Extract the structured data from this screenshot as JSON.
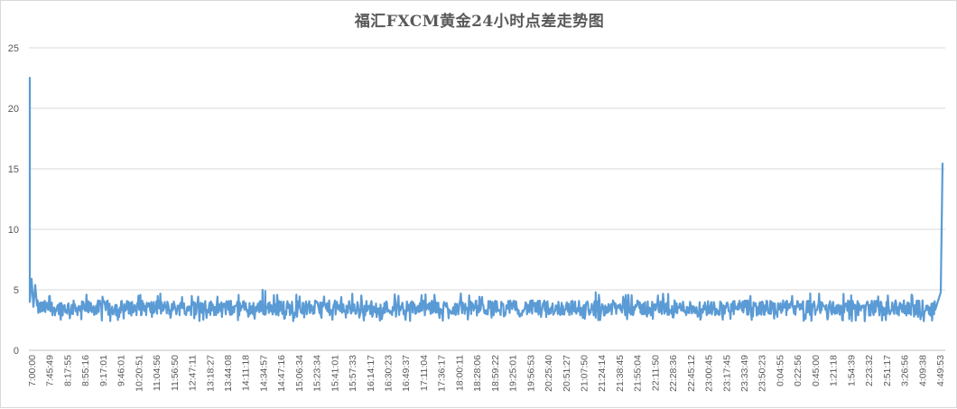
{
  "chart_data": {
    "type": "line",
    "title": "福汇FXCM黄金24小时点差走势图",
    "xlabel": "",
    "ylabel": "",
    "ylim": [
      0,
      25
    ],
    "yticks": [
      0,
      5,
      10,
      15,
      20,
      25
    ],
    "grid": "horizontal",
    "legend": "none",
    "series_color": "#5B9BD5",
    "x_tick_labels": [
      "7:00:00",
      "7:45:49",
      "8:17:55",
      "8:55:16",
      "9:17:01",
      "9:46:01",
      "10:20:51",
      "11:04:56",
      "11:56:50",
      "12:47:11",
      "13:18:27",
      "13:44:08",
      "14:11:18",
      "14:34:57",
      "14:47:16",
      "15:06:34",
      "15:23:34",
      "15:41:01",
      "15:57:33",
      "16:14:17",
      "16:30:23",
      "16:49:37",
      "17:11:04",
      "17:36:17",
      "18:00:11",
      "18:28:06",
      "18:59:22",
      "19:25:01",
      "19:56:53",
      "20:25:40",
      "20:51:27",
      "21:07:50",
      "21:24:14",
      "21:38:45",
      "21:55:04",
      "22:11:50",
      "22:28:36",
      "22:45:12",
      "23:00:45",
      "23:17:45",
      "23:33:49",
      "23:50:23",
      "0:04:55",
      "0:22:56",
      "0:45:00",
      "1:21:18",
      "1:54:39",
      "2:23:32",
      "2:51:17",
      "3:26:56",
      "4:09:38",
      "4:49:53"
    ],
    "series": [
      {
        "points": [
          {
            "x": "7:00:00",
            "y": 22.6
          },
          {
            "x": "7:00:00",
            "y": 4.0
          },
          {
            "x": "7:45:49",
            "y": 3.5
          },
          {
            "x": "14:34:57",
            "y": 5.0
          },
          {
            "x": "21:24:14",
            "y": 4.8
          },
          {
            "x": "4:49:53",
            "y": 3.6
          },
          {
            "x": "4:49:53",
            "y": 15.5
          }
        ],
        "typical_min": 2.6,
        "typical_max": 4.4
      }
    ]
  }
}
